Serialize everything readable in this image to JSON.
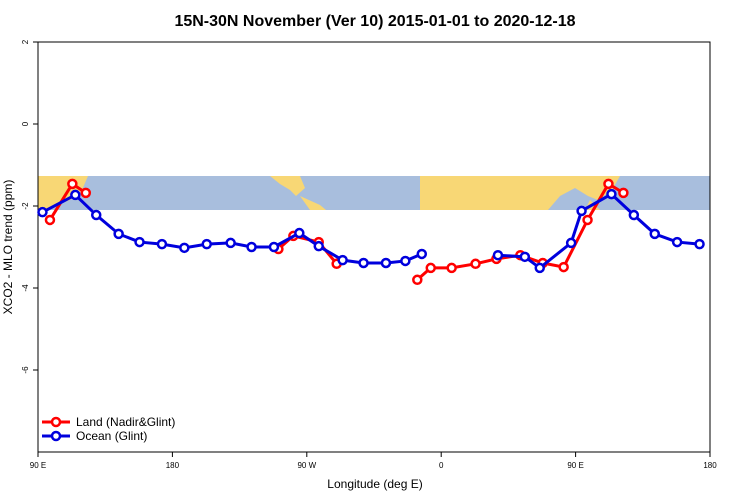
{
  "chart_data": {
    "type": "line",
    "title": "15N-30N November (Ver 10)   2015-01-01 to 2020-12-18",
    "x_label": "Longitude (deg E)",
    "y_label": "XCO2 - MLO trend (ppm)",
    "xlim": [
      90,
      540
    ],
    "xticks": [
      {
        "value": 90,
        "label": "90 E"
      },
      {
        "value": 180,
        "label": "180"
      },
      {
        "value": 270,
        "label": "90 W"
      },
      {
        "value": 360,
        "label": "0"
      },
      {
        "value": 450,
        "label": "90 E"
      },
      {
        "value": 540,
        "label": "180"
      }
    ],
    "ylim": [
      -8,
      2
    ],
    "yticks": [
      2,
      0,
      -2,
      -4,
      -6
    ],
    "legend": "bottom-left",
    "series": [
      {
        "name": "Land (Nadir&Glint)",
        "color": "#ff0000",
        "x": [
          98,
          113,
          122,
          null,
          251,
          261,
          278,
          290,
          null,
          344,
          353,
          367,
          383,
          397,
          413,
          428,
          442,
          458,
          472,
          482
        ],
        "values": [
          -2.34,
          -1.46,
          -1.68,
          null,
          -3.05,
          -2.73,
          -2.88,
          -3.41,
          null,
          -3.8,
          -3.51,
          -3.51,
          -3.41,
          -3.29,
          -3.2,
          -3.39,
          -3.49,
          -2.34,
          -1.46,
          -1.68
        ]
      },
      {
        "name": "Ocean (Glint)",
        "color": "#0000dd",
        "x": [
          93,
          115,
          129,
          144,
          158,
          173,
          188,
          203,
          219,
          233,
          248,
          265,
          278,
          294,
          308,
          323,
          336,
          347,
          null,
          398,
          416,
          426,
          447,
          454,
          474,
          489,
          503,
          518,
          533
        ],
        "values": [
          -2.15,
          -1.73,
          -2.22,
          -2.68,
          -2.88,
          -2.93,
          -3.02,
          -2.93,
          -2.9,
          -3.0,
          -3.0,
          -2.66,
          -2.98,
          -3.32,
          -3.39,
          -3.39,
          -3.34,
          -3.17,
          null,
          -3.2,
          -3.24,
          -3.51,
          -2.9,
          -2.12,
          -1.71,
          -2.22,
          -2.68,
          -2.88,
          -2.93
        ]
      }
    ]
  }
}
